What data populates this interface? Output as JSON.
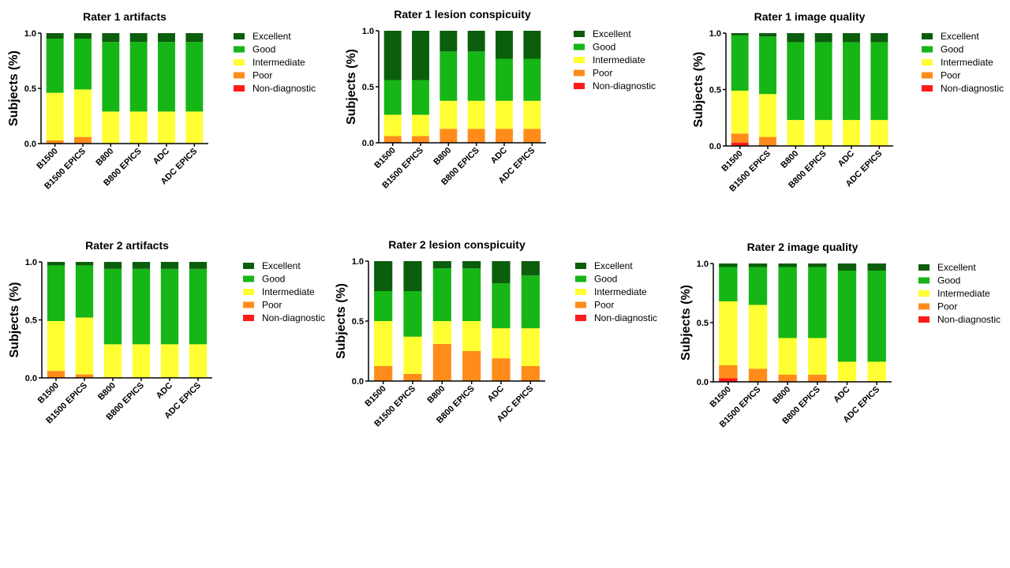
{
  "colors": {
    "Excellent": "#0b5e0b",
    "Good": "#15b615",
    "Intermediate": "#ffff33",
    "Poor": "#ff8c1a",
    "Non-diagnostic": "#ff1a1a"
  },
  "chart_data": [
    {
      "type": "bar",
      "stacked": true,
      "title": "Rater 1 artifacts",
      "ylabel": "Subjects (%)",
      "xlabel": "",
      "ylim": [
        0,
        1
      ],
      "yticks": [
        "0.0",
        "0.5",
        "1.0"
      ],
      "categories": [
        "B1500",
        "B1500 EPICS",
        "B800",
        "B800 EPICS",
        "ADC",
        "ADC EPICS"
      ],
      "legend": [
        "Excellent",
        "Good",
        "Intermediate",
        "Poor",
        "Non-diagnostic"
      ],
      "series": [
        {
          "name": "Non-diagnostic",
          "values": [
            0,
            0,
            0,
            0,
            0,
            0
          ]
        },
        {
          "name": "Poor",
          "values": [
            0.03,
            0.06,
            0,
            0,
            0,
            0
          ]
        },
        {
          "name": "Intermediate",
          "values": [
            0.43,
            0.43,
            0.29,
            0.29,
            0.29,
            0.29
          ]
        },
        {
          "name": "Good",
          "values": [
            0.49,
            0.46,
            0.63,
            0.63,
            0.63,
            0.63
          ]
        },
        {
          "name": "Excellent",
          "values": [
            0.05,
            0.05,
            0.08,
            0.08,
            0.08,
            0.08
          ]
        }
      ]
    },
    {
      "type": "bar",
      "stacked": true,
      "title": "Rater 1 lesion conspicuity",
      "ylabel": "Subjects (%)",
      "xlabel": "",
      "ylim": [
        0,
        1
      ],
      "yticks": [
        "0.0",
        "0.5",
        "1.0"
      ],
      "categories": [
        "B1500",
        "B1500 EPICS",
        "B800",
        "B800 EPICS",
        "ADC",
        "ADC EPICS"
      ],
      "legend": [
        "Excellent",
        "Good",
        "Intermediate",
        "Poor",
        "Non-diagnostic"
      ],
      "series": [
        {
          "name": "Non-diagnostic",
          "values": [
            0,
            0,
            0,
            0,
            0,
            0
          ]
        },
        {
          "name": "Poor",
          "values": [
            0.06,
            0.06,
            0.125,
            0.125,
            0.125,
            0.125
          ]
        },
        {
          "name": "Intermediate",
          "values": [
            0.19,
            0.19,
            0.25,
            0.25,
            0.25,
            0.25
          ]
        },
        {
          "name": "Good",
          "values": [
            0.31,
            0.31,
            0.44,
            0.44,
            0.375,
            0.375
          ]
        },
        {
          "name": "Excellent",
          "values": [
            0.44,
            0.44,
            0.185,
            0.185,
            0.25,
            0.25
          ]
        }
      ]
    },
    {
      "type": "bar",
      "stacked": true,
      "title": "Rater 1 image quality",
      "ylabel": "Subjects (%)",
      "xlabel": "",
      "ylim": [
        0,
        1
      ],
      "yticks": [
        "0.0",
        "0.5",
        "1.0"
      ],
      "categories": [
        "B1500",
        "B1500 EPICS",
        "B800",
        "B800 EPICS",
        "ADC",
        "ADC EPICS"
      ],
      "legend": [
        "Excellent",
        "Good",
        "Intermediate",
        "Poor",
        "Non-diagnostic"
      ],
      "series": [
        {
          "name": "Non-diagnostic",
          "values": [
            0.03,
            0,
            0,
            0,
            0,
            0
          ]
        },
        {
          "name": "Poor",
          "values": [
            0.08,
            0.08,
            0,
            0,
            0,
            0
          ]
        },
        {
          "name": "Intermediate",
          "values": [
            0.38,
            0.38,
            0.23,
            0.23,
            0.23,
            0.23
          ]
        },
        {
          "name": "Good",
          "values": [
            0.49,
            0.51,
            0.69,
            0.69,
            0.69,
            0.69
          ]
        },
        {
          "name": "Excellent",
          "values": [
            0.02,
            0.03,
            0.08,
            0.08,
            0.08,
            0.08
          ]
        }
      ]
    },
    {
      "type": "bar",
      "stacked": true,
      "title": "Rater 2 artifacts",
      "ylabel": "Subjects (%)",
      "xlabel": "",
      "ylim": [
        0,
        1
      ],
      "yticks": [
        "0.0",
        "0.5",
        "1.0"
      ],
      "categories": [
        "B1500",
        "B1500 EPICS",
        "B800",
        "B800 EPICS",
        "ADC",
        "ADC EPICS"
      ],
      "legend": [
        "Excellent",
        "Good",
        "Intermediate",
        "Poor",
        "Non-diagnostic"
      ],
      "series": [
        {
          "name": "Non-diagnostic",
          "values": [
            0,
            0,
            0,
            0,
            0,
            0
          ]
        },
        {
          "name": "Poor",
          "values": [
            0.06,
            0.03,
            0,
            0,
            0,
            0
          ]
        },
        {
          "name": "Intermediate",
          "values": [
            0.43,
            0.49,
            0.29,
            0.29,
            0.29,
            0.29
          ]
        },
        {
          "name": "Good",
          "values": [
            0.48,
            0.45,
            0.65,
            0.65,
            0.65,
            0.65
          ]
        },
        {
          "name": "Excellent",
          "values": [
            0.03,
            0.03,
            0.06,
            0.06,
            0.06,
            0.06
          ]
        }
      ]
    },
    {
      "type": "bar",
      "stacked": true,
      "title": "Rater 2 lesion conspicuity",
      "ylabel": "Subjects (%)",
      "xlabel": "",
      "ylim": [
        0,
        1
      ],
      "yticks": [
        "0.0",
        "0.5",
        "1.0"
      ],
      "categories": [
        "B1500",
        "B1500 EPICS",
        "B800",
        "B800 EPICS",
        "ADC",
        "ADC EPICS"
      ],
      "legend": [
        "Excellent",
        "Good",
        "Intermediate",
        "Poor",
        "Non-diagnostic"
      ],
      "series": [
        {
          "name": "Non-diagnostic",
          "values": [
            0,
            0,
            0,
            0,
            0,
            0
          ]
        },
        {
          "name": "Poor",
          "values": [
            0.125,
            0.06,
            0.31,
            0.25,
            0.19,
            0.125
          ]
        },
        {
          "name": "Intermediate",
          "values": [
            0.375,
            0.31,
            0.19,
            0.25,
            0.25,
            0.315
          ]
        },
        {
          "name": "Good",
          "values": [
            0.25,
            0.38,
            0.44,
            0.44,
            0.375,
            0.44
          ]
        },
        {
          "name": "Excellent",
          "values": [
            0.25,
            0.25,
            0.06,
            0.06,
            0.185,
            0.12
          ]
        }
      ]
    },
    {
      "type": "bar",
      "stacked": true,
      "title": "Rater 2 image quality",
      "ylabel": "Subjects (%)",
      "xlabel": "",
      "ylim": [
        0,
        1
      ],
      "yticks": [
        "0.0",
        "0.5",
        "1.0"
      ],
      "categories": [
        "B1500",
        "B1500 EPICS",
        "B800",
        "B800 EPICS",
        "ADC",
        "ADC EPICS"
      ],
      "legend": [
        "Excellent",
        "Good",
        "Intermediate",
        "Poor",
        "Non-diagnostic"
      ],
      "series": [
        {
          "name": "Non-diagnostic",
          "values": [
            0.03,
            0,
            0,
            0,
            0,
            0
          ]
        },
        {
          "name": "Poor",
          "values": [
            0.11,
            0.11,
            0.06,
            0.06,
            0,
            0
          ]
        },
        {
          "name": "Intermediate",
          "values": [
            0.54,
            0.54,
            0.31,
            0.31,
            0.17,
            0.17
          ]
        },
        {
          "name": "Good",
          "values": [
            0.29,
            0.32,
            0.6,
            0.6,
            0.77,
            0.77
          ]
        },
        {
          "name": "Excellent",
          "values": [
            0.03,
            0.03,
            0.03,
            0.03,
            0.06,
            0.06
          ]
        }
      ]
    }
  ]
}
